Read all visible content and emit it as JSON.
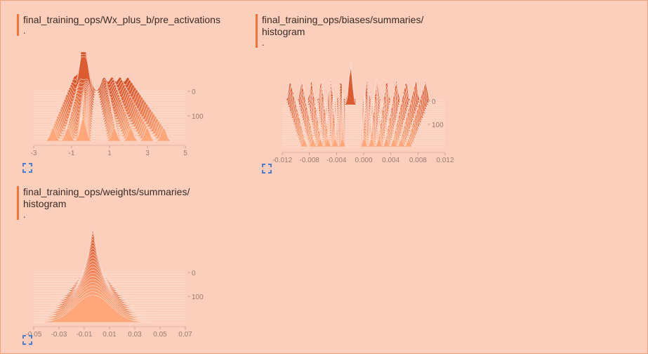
{
  "cards": [
    {
      "title": "final_training_ops/Wx_plus_b/pre_activations",
      "dot": ".",
      "x_ticks": [
        "-3",
        "-1",
        "1",
        "3",
        "5"
      ],
      "y_ticks": [
        "0",
        "100"
      ],
      "expand_icon": "fullscreen-icon"
    },
    {
      "title": "final_training_ops/biases/summaries/\nhistogram",
      "dot": ".",
      "x_ticks": [
        "-0.012",
        "-0.008",
        "-0.004",
        "0.000",
        "0.004",
        "0.008",
        "0.012"
      ],
      "y_ticks": [
        "0",
        "100"
      ],
      "expand_icon": "fullscreen-icon"
    },
    {
      "title": "final_training_ops/weights/summaries/\nhistogram",
      "dot": ".",
      "x_ticks": [
        "-0.05",
        "-0.03",
        "-0.01",
        "0.01",
        "0.03",
        "0.05",
        "0.07"
      ],
      "y_ticks": [
        "0",
        "100"
      ],
      "expand_icon": "fullscreen-icon"
    }
  ],
  "colors": {
    "background": "#fccfbd",
    "accent": "#f4733d",
    "hist_dark": "#d9532a",
    "hist_light": "#ffa77a"
  }
}
